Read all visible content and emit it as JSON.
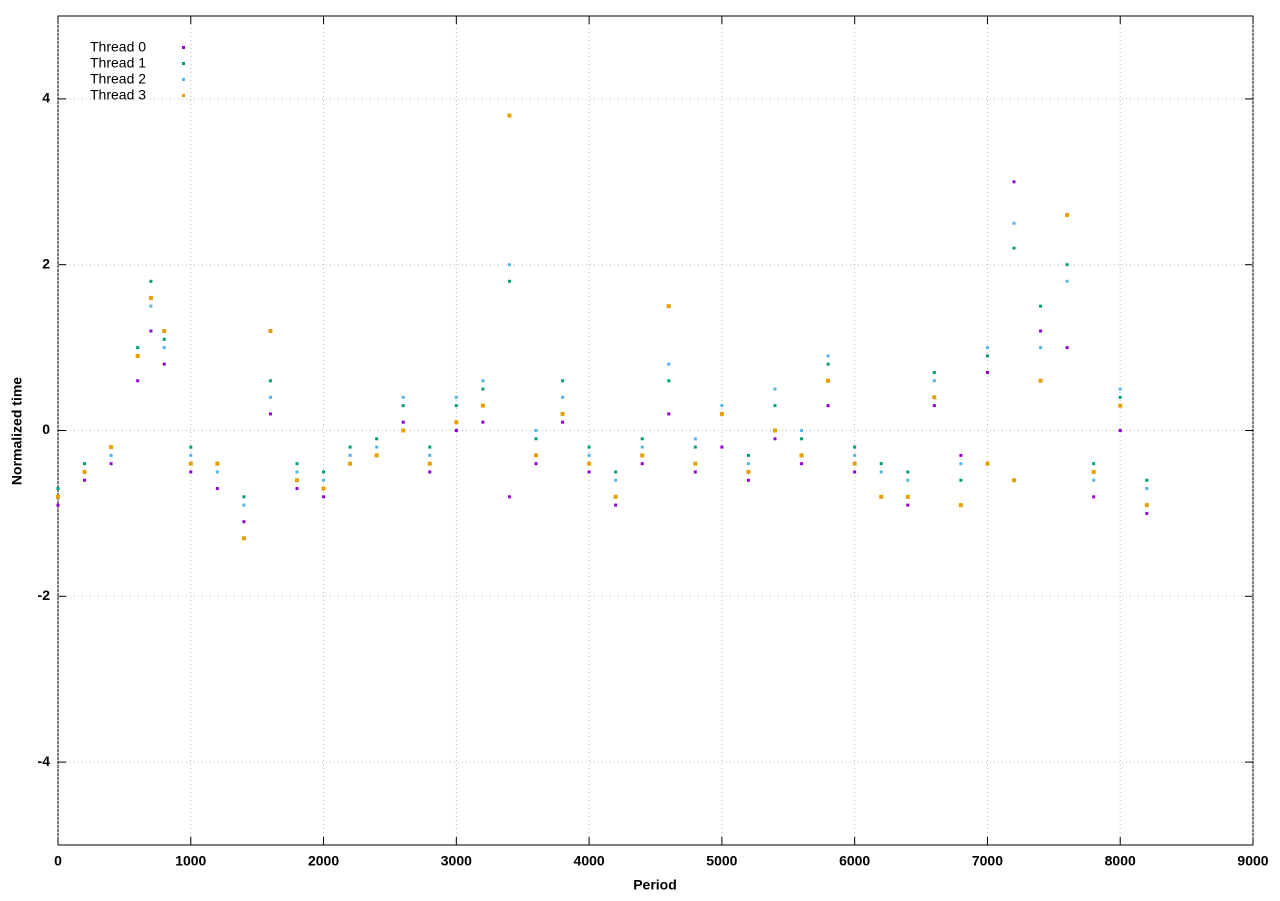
{
  "chart_data": {
    "type": "scatter",
    "xlabel": "Period",
    "ylabel": "Normalized time",
    "xlim": [
      0,
      9000
    ],
    "xticks": [
      0,
      1000,
      2000,
      3000,
      4000,
      5000,
      6000,
      7000,
      8000,
      9000
    ],
    "ylim": [
      -5,
      5
    ],
    "yticks": [
      -4,
      -2,
      0,
      2,
      4
    ],
    "grid": true,
    "legend": "top-left",
    "x": [
      0,
      200,
      400,
      600,
      700,
      800,
      1000,
      1200,
      1400,
      1600,
      1800,
      2000,
      2200,
      2400,
      2600,
      2800,
      3000,
      3200,
      3400,
      3600,
      3800,
      4000,
      4200,
      4400,
      4600,
      4800,
      5000,
      5200,
      5400,
      5600,
      5800,
      6000,
      6200,
      6400,
      6600,
      6800,
      7000,
      7200,
      7400,
      7600,
      7800,
      8000,
      8200
    ],
    "series": [
      {
        "name": "Thread 0",
        "color": "#9400d3",
        "values": [
          -0.9,
          -0.6,
          -0.4,
          0.6,
          1.2,
          0.8,
          -0.5,
          -0.7,
          -1.1,
          0.2,
          -0.7,
          -0.8,
          -0.4,
          -0.3,
          0.1,
          -0.5,
          0.0,
          0.1,
          -0.8,
          -0.4,
          0.1,
          -0.5,
          -0.9,
          -0.4,
          0.2,
          -0.5,
          -0.2,
          -0.6,
          -0.1,
          -0.4,
          0.3,
          -0.5,
          -0.8,
          -0.9,
          0.3,
          -0.3,
          0.7,
          3.0,
          1.2,
          1.0,
          -0.8,
          0.0,
          -1.0
        ]
      },
      {
        "name": "Thread 1",
        "color": "#009e73",
        "values": [
          -0.7,
          -0.4,
          -0.2,
          1.0,
          1.8,
          1.1,
          -0.2,
          -0.4,
          -0.8,
          0.6,
          -0.4,
          -0.5,
          -0.2,
          -0.1,
          0.3,
          -0.2,
          0.3,
          0.5,
          1.8,
          -0.1,
          0.6,
          -0.2,
          -0.5,
          -0.1,
          0.6,
          -0.2,
          0.2,
          -0.3,
          0.3,
          -0.1,
          0.8,
          -0.2,
          -0.4,
          -0.5,
          0.7,
          -0.6,
          0.9,
          2.2,
          1.5,
          2.0,
          -0.4,
          0.4,
          -0.6
        ]
      },
      {
        "name": "Thread 2",
        "color": "#56b4e9",
        "values": [
          -0.8,
          -0.5,
          -0.3,
          0.9,
          1.5,
          1.0,
          -0.3,
          -0.5,
          -0.9,
          0.4,
          -0.5,
          -0.6,
          -0.3,
          -0.2,
          0.4,
          -0.3,
          0.4,
          0.6,
          2.0,
          0.0,
          0.4,
          -0.3,
          -0.6,
          -0.2,
          0.8,
          -0.1,
          0.3,
          -0.4,
          0.5,
          0.0,
          0.9,
          -0.3,
          -0.5,
          -0.6,
          0.6,
          -0.4,
          1.0,
          2.5,
          1.0,
          1.8,
          -0.6,
          0.5,
          -0.7
        ]
      },
      {
        "name": "Thread 3",
        "color": "#e69f00",
        "values": [
          -0.8,
          -0.5,
          -0.2,
          0.9,
          1.6,
          1.2,
          -0.4,
          -0.4,
          -1.3,
          1.2,
          -0.6,
          -0.7,
          -0.4,
          -0.3,
          0.0,
          -0.4,
          0.1,
          0.3,
          3.8,
          -0.3,
          0.2,
          -0.4,
          -0.8,
          -0.3,
          1.5,
          -0.4,
          0.2,
          -0.5,
          0.0,
          -0.3,
          0.6,
          -0.4,
          -0.8,
          -0.8,
          0.4,
          -0.9,
          -0.4,
          -0.6,
          0.6,
          2.6,
          -0.5,
          0.3,
          -0.9
        ]
      }
    ]
  }
}
